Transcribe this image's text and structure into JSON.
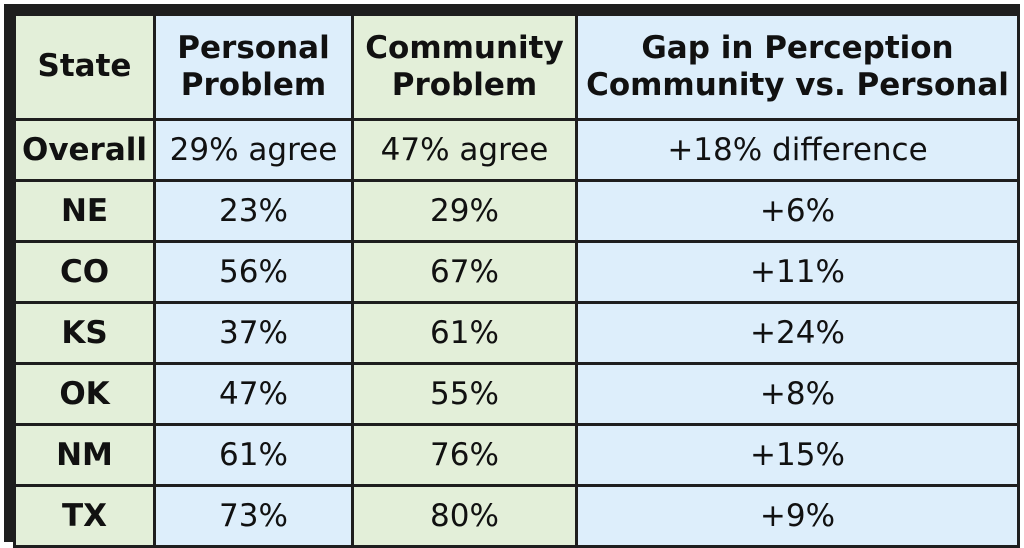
{
  "chart_data": {
    "type": "table",
    "columns": [
      "State",
      "Personal Problem",
      "Community Problem",
      "Gap in Perception Community vs. Personal"
    ],
    "header_lines": [
      [
        "State"
      ],
      [
        "Personal",
        "Problem"
      ],
      [
        "Community",
        "Problem"
      ],
      [
        "Gap in Perception",
        "Community vs. Personal"
      ]
    ],
    "rows": [
      [
        "Overall",
        "29% agree",
        "47% agree",
        "+18% difference"
      ],
      [
        "NE",
        "23%",
        "29%",
        "+6%"
      ],
      [
        "CO",
        "56%",
        "67%",
        "+11%"
      ],
      [
        "KS",
        "37%",
        "61%",
        "+24%"
      ],
      [
        "OK",
        "47%",
        "55%",
        "+8%"
      ],
      [
        "NM",
        "61%",
        "76%",
        "+15%"
      ],
      [
        "TX",
        "73%",
        "80%",
        "+9%"
      ]
    ],
    "colors": {
      "border": "#1e1e1e",
      "green_fill": "#e3efd9",
      "blue_fill": "#ddeefb"
    }
  }
}
